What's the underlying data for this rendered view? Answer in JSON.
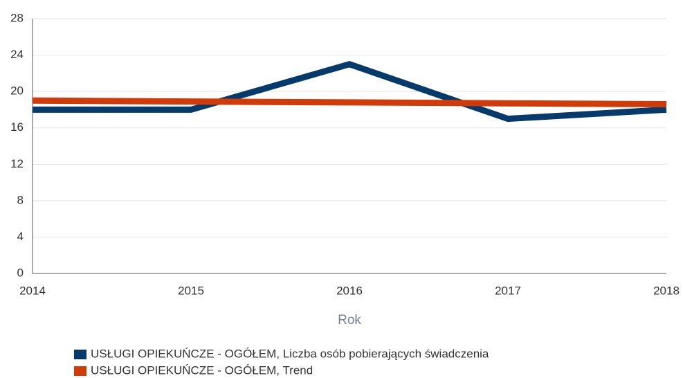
{
  "chart_data": {
    "type": "line",
    "x_label": "Rok",
    "categories": [
      "2014",
      "2015",
      "2016",
      "2017",
      "2018"
    ],
    "series": [
      {
        "name": "USŁUGI OPIEKUŃCZE - OGÓŁEM, Liczba osób pobierających świadczenia",
        "color": "#053a6b",
        "values": [
          18,
          18,
          23,
          17,
          18
        ]
      },
      {
        "name": "USŁUGI OPIEKUŃCZE - OGÓŁEM, Trend",
        "color": "#d13b0a",
        "values": [
          19.0,
          18.9,
          18.8,
          18.7,
          18.6
        ]
      }
    ],
    "ylim": [
      0,
      28
    ],
    "yticks": [
      0,
      4,
      8,
      12,
      16,
      20,
      24,
      28
    ],
    "grid": true
  }
}
